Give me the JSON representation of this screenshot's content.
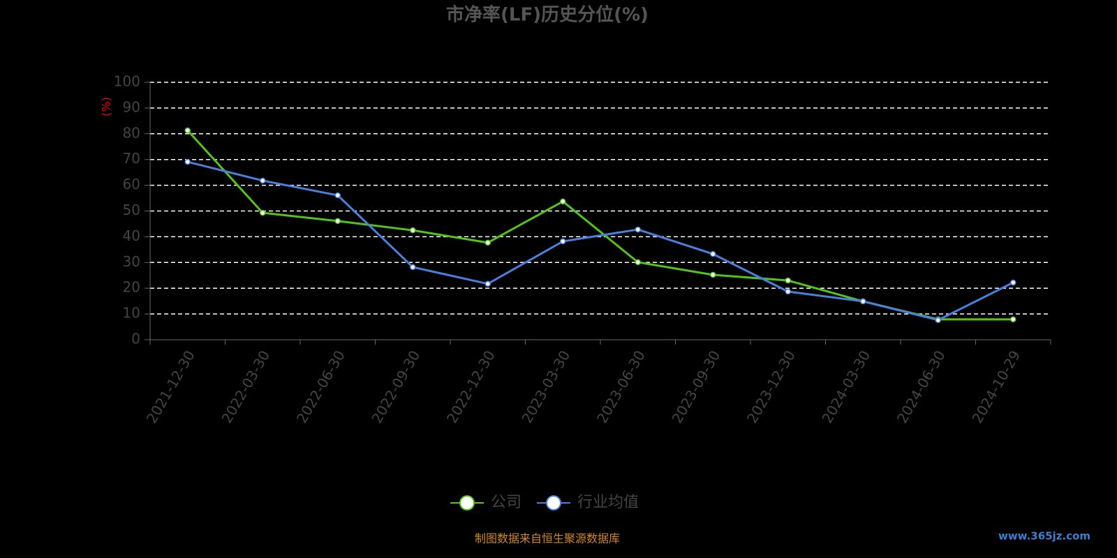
{
  "chart_data": {
    "type": "line",
    "title": "市净率(LF)历史分位(%)",
    "y_label": "(%)",
    "categories": [
      "2021-12-30",
      "2022-03-30",
      "2022-06-30",
      "2022-09-30",
      "2022-12-30",
      "2023-03-30",
      "2023-06-30",
      "2023-09-30",
      "2023-12-30",
      "2024-03-30",
      "2024-06-30",
      "2024-10-29"
    ],
    "series": [
      {
        "name": "公司",
        "color": "#52c41a",
        "values": [
          81.3,
          49.3,
          46.1,
          42.5,
          37.7,
          53.7,
          30.1,
          25.2,
          23.0,
          14.9,
          7.9,
          7.9
        ]
      },
      {
        "name": "行业均值",
        "color": "#4a7fdc",
        "values": [
          69.1,
          61.8,
          56.1,
          28.2,
          21.7,
          38.2,
          42.8,
          33.3,
          18.7,
          14.9,
          7.6,
          22.2
        ]
      }
    ],
    "ylim": [
      0,
      100
    ],
    "yticks": [
      0,
      10,
      20,
      30,
      40,
      50,
      60,
      70,
      80,
      90,
      100
    ],
    "grid": true,
    "legend": "bottom",
    "source": "制图数据来自恒生聚源数据库",
    "watermark": "www.365jz.com"
  }
}
